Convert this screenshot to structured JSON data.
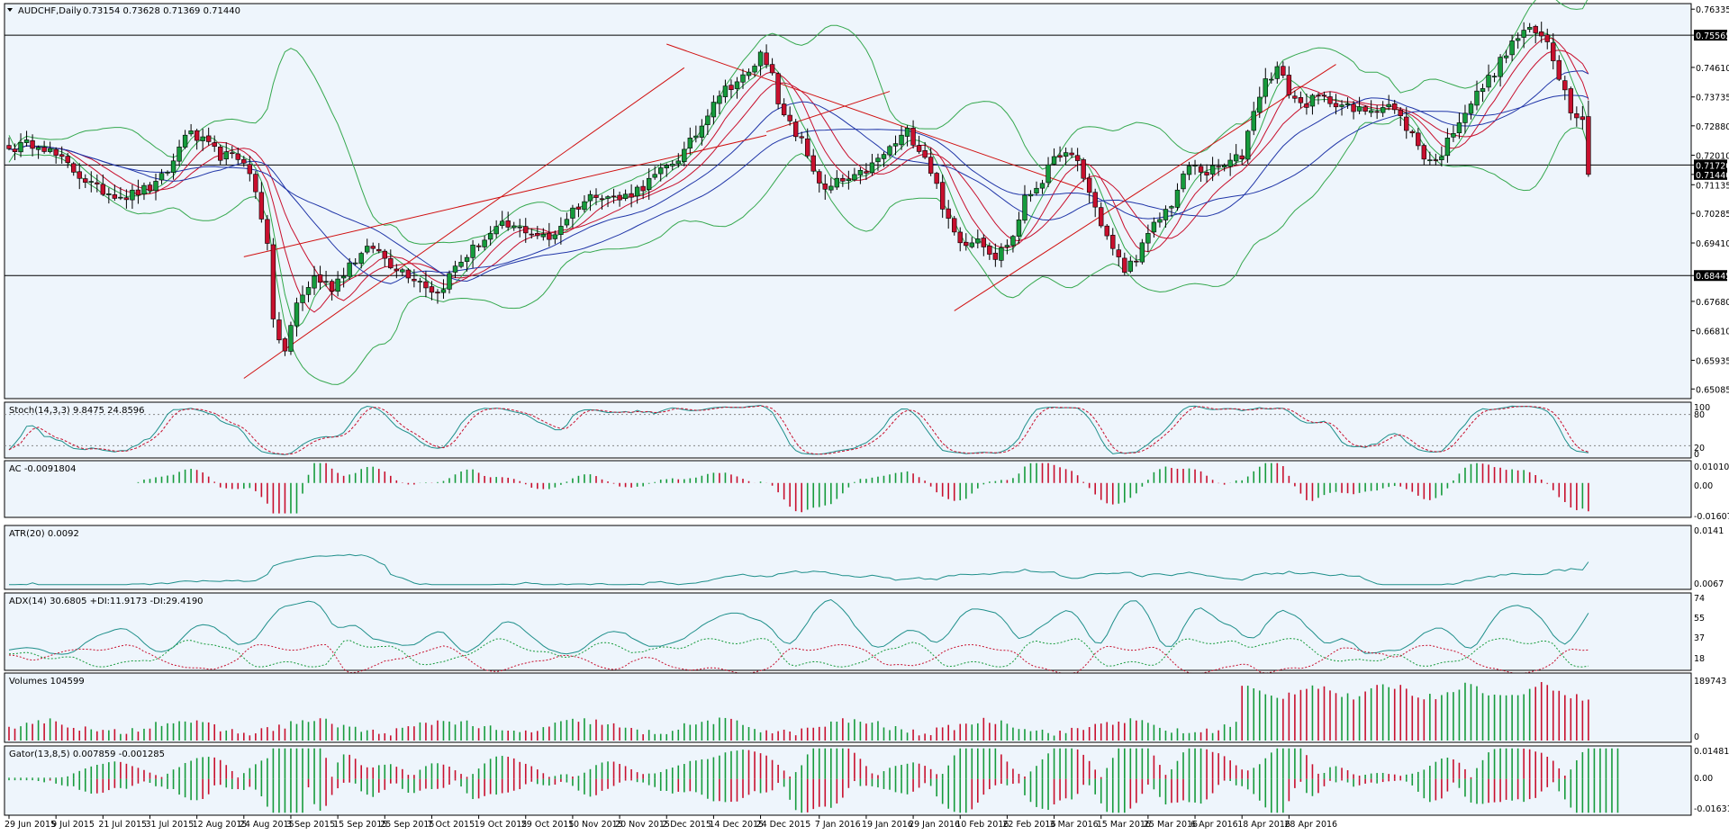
{
  "colors": {
    "background": "#eef5fc",
    "bull": "#169b3c",
    "bear": "#c8102e",
    "ma_blue": "#2136a8",
    "ma_red": "#c8102e",
    "ma_green": "#2fa84a",
    "bollinger": "#35a84e",
    "trendline": "#d01010",
    "indicator_line": "#1e8f8a",
    "signal": "#c8102e",
    "grid": "#000000"
  },
  "header": {
    "symbol_label": "AUDCHF,Daily",
    "ohlc_label": "0.73154 0.73628 0.71369 0.71440",
    "menu_icon": "triangle-down-icon"
  },
  "price_axis": {
    "ticks": [
      "0.76335",
      "0.75565",
      "0.74610",
      "0.73735",
      "0.72880",
      "0.72010",
      "0.71720",
      "0.71440",
      "0.71135",
      "0.70285",
      "0.69410",
      "0.68445",
      "0.67680",
      "0.66810",
      "0.65935",
      "0.65085"
    ],
    "highlight_levels": [
      "0.75565",
      "0.71720",
      "0.71440",
      "0.68445"
    ]
  },
  "date_axis": [
    "29 Jun 2015",
    "9 Jul 2015",
    "21 Jul 2015",
    "31 Jul 2015",
    "12 Aug 2015",
    "24 Aug 2015",
    "3 Sep 2015",
    "15 Sep 2015",
    "25 Sep 2015",
    "7 Oct 2015",
    "19 Oct 2015",
    "29 Oct 2015",
    "10 Nov 2015",
    "20 Nov 2015",
    "2 Dec 2015",
    "14 Dec 2015",
    "24 Dec 2015",
    "7 Jan 2016",
    "19 Jan 2016",
    "29 Jan 2016",
    "10 Feb 2016",
    "22 Feb 2016",
    "3 Mar 2016",
    "15 Mar 2016",
    "25 Mar 2016",
    "6 Apr 2016",
    "18 Apr 2016",
    "28 Apr 2016"
  ],
  "panels": {
    "stoch": {
      "label": "Stoch(14,3,3) 9.8475 24.8596",
      "axis": [
        "100",
        "80",
        "20",
        "0"
      ]
    },
    "ac": {
      "label": "AC -0.0091804",
      "axis": [
        "0.010101",
        "0.00",
        "-0.016077"
      ]
    },
    "atr": {
      "label": "ATR(20) 0.0092",
      "axis": [
        "0.0141",
        "0.0067"
      ]
    },
    "adx": {
      "label": "ADX(14) 30.6805 +DI:11.9173 -DI:29.4190",
      "axis": [
        "74",
        "55",
        "37",
        "18"
      ]
    },
    "volumes": {
      "label": "Volumes 104599",
      "axis": [
        "189743",
        "0"
      ]
    },
    "gator": {
      "label": "Gator(13,8,5) 0.007859 -0.001285",
      "axis": [
        "0.014815",
        "0.00",
        "-0.016317"
      ]
    }
  },
  "chart_data": {
    "type": "candlestick",
    "title": "AUDCHF,Daily",
    "ohlc": {
      "open": 0.73154,
      "high": 0.73628,
      "low": 0.71369,
      "close": 0.7144
    },
    "ylim": [
      0.648,
      0.765
    ],
    "date_range": [
      "2015-06-29",
      "2016-05-03"
    ],
    "horizontal_levels": [
      0.75565,
      0.7172,
      0.68445
    ],
    "anchors": [
      [
        0,
        0.722
      ],
      [
        5,
        0.724
      ],
      [
        10,
        0.717
      ],
      [
        15,
        0.71
      ],
      [
        20,
        0.708
      ],
      [
        25,
        0.711
      ],
      [
        28,
        0.718
      ],
      [
        30,
        0.727
      ],
      [
        33,
        0.724
      ],
      [
        36,
        0.72
      ],
      [
        40,
        0.719
      ],
      [
        42,
        0.709
      ],
      [
        44,
        0.695
      ],
      [
        45,
        0.67
      ],
      [
        47,
        0.662
      ],
      [
        49,
        0.676
      ],
      [
        52,
        0.684
      ],
      [
        55,
        0.681
      ],
      [
        58,
        0.688
      ],
      [
        62,
        0.693
      ],
      [
        65,
        0.688
      ],
      [
        70,
        0.683
      ],
      [
        73,
        0.679
      ],
      [
        76,
        0.687
      ],
      [
        80,
        0.694
      ],
      [
        84,
        0.699
      ],
      [
        88,
        0.698
      ],
      [
        92,
        0.695
      ],
      [
        96,
        0.704
      ],
      [
        100,
        0.709
      ],
      [
        104,
        0.707
      ],
      [
        108,
        0.711
      ],
      [
        111,
        0.715
      ],
      [
        115,
        0.721
      ],
      [
        118,
        0.729
      ],
      [
        120,
        0.737
      ],
      [
        123,
        0.741
      ],
      [
        126,
        0.744
      ],
      [
        128,
        0.75
      ],
      [
        130,
        0.746
      ],
      [
        131,
        0.734
      ],
      [
        133,
        0.729
      ],
      [
        135,
        0.724
      ],
      [
        137,
        0.716
      ],
      [
        139,
        0.709
      ],
      [
        141,
        0.712
      ],
      [
        144,
        0.713
      ],
      [
        147,
        0.717
      ],
      [
        150,
        0.722
      ],
      [
        153,
        0.727
      ],
      [
        156,
        0.72
      ],
      [
        158,
        0.711
      ],
      [
        160,
        0.7
      ],
      [
        162,
        0.694
      ],
      [
        165,
        0.696
      ],
      [
        168,
        0.69
      ],
      [
        171,
        0.696
      ],
      [
        173,
        0.707
      ],
      [
        176,
        0.713
      ],
      [
        179,
        0.721
      ],
      [
        182,
        0.718
      ],
      [
        184,
        0.709
      ],
      [
        186,
        0.7
      ],
      [
        188,
        0.692
      ],
      [
        190,
        0.686
      ],
      [
        192,
        0.69
      ],
      [
        195,
        0.699
      ],
      [
        198,
        0.706
      ],
      [
        201,
        0.717
      ],
      [
        204,
        0.715
      ],
      [
        207,
        0.717
      ],
      [
        210,
        0.72
      ],
      [
        212,
        0.734
      ],
      [
        214,
        0.742
      ],
      [
        216,
        0.746
      ],
      [
        218,
        0.739
      ],
      [
        220,
        0.735
      ],
      [
        223,
        0.737
      ],
      [
        226,
        0.736
      ],
      [
        229,
        0.733
      ],
      [
        232,
        0.734
      ],
      [
        235,
        0.735
      ],
      [
        237,
        0.731
      ],
      [
        239,
        0.726
      ],
      [
        241,
        0.72
      ],
      [
        243,
        0.718
      ],
      [
        245,
        0.724
      ],
      [
        247,
        0.731
      ],
      [
        250,
        0.738
      ],
      [
        253,
        0.745
      ],
      [
        256,
        0.753
      ],
      [
        258,
        0.757
      ],
      [
        260,
        0.756
      ],
      [
        262,
        0.754
      ],
      [
        264,
        0.744
      ],
      [
        266,
        0.734
      ],
      [
        268,
        0.7315
      ],
      [
        269,
        0.7144
      ]
    ],
    "trendlines": [
      {
        "from": [
          "2015-08-24",
          0.654
        ],
        "to": [
          "2015-12-07",
          0.746
        ]
      },
      {
        "from": [
          "2015-08-24",
          0.69
        ],
        "to": [
          "2015-12-25",
          0.726
        ]
      },
      {
        "from": [
          "2015-12-02",
          0.753
        ],
        "to": [
          "2016-03-10",
          0.71
        ]
      },
      {
        "from": [
          "2015-12-25",
          0.727
        ],
        "to": [
          "2016-01-25",
          0.739
        ]
      },
      {
        "from": [
          "2016-02-09",
          0.674
        ],
        "to": [
          "2016-05-10",
          0.747
        ]
      }
    ]
  }
}
